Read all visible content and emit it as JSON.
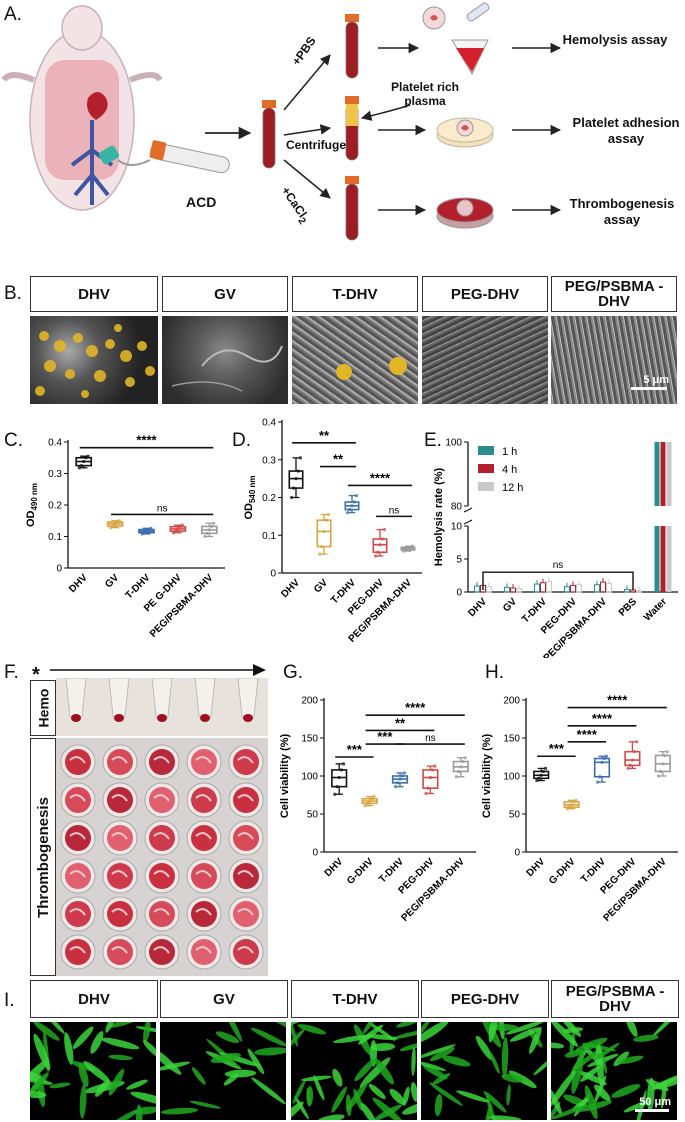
{
  "panels": {
    "A": "A.",
    "B": "B.",
    "C": "C.",
    "D": "D.",
    "E": "E.",
    "F": "F.",
    "G": "G.",
    "H": "H.",
    "I": "I."
  },
  "panel_a": {
    "acd": "ACD",
    "pbs": "+PBS",
    "centrifuge": "Centrifuge",
    "cacl2": "+CaCl",
    "cacl2_sub": "2",
    "prp": "Platelet rich plasma",
    "assay1": "Hemolysis assay",
    "assay2": "Platelet adhesion assay",
    "assay3": "Thrombogenesis assay"
  },
  "panel_b": {
    "headers": [
      "DHV",
      "GV",
      "T-DHV",
      "PEG-DHV",
      "PEG/PSBMA -DHV"
    ],
    "scalebar": "5 μm"
  },
  "panel_f": {
    "hemo": "Hemo",
    "thrombo": "Thrombogenesis",
    "star": "*"
  },
  "panel_i": {
    "headers": [
      "DHV",
      "GV",
      "T-DHV",
      "PEG-DHV",
      "PEG/PSBMA -DHV"
    ],
    "scalebar": "50 μm"
  },
  "chart_data": [
    {
      "id": "C",
      "type": "box",
      "ylabel": "OD",
      "ylabel_sub": "490 nm",
      "categories": [
        "DHV",
        "GV",
        "T-DHV",
        "PE G-DHV",
        "PEG/PSBMA-DHV"
      ],
      "ylim": [
        0,
        0.4
      ],
      "yticks": [
        0.0,
        0.1,
        0.2,
        0.3,
        0.4
      ],
      "colors": [
        "#111111",
        "#d9a441",
        "#3b6fb0",
        "#d04a4a",
        "#9a9a9a"
      ],
      "boxes": [
        {
          "min": 0.318,
          "q1": 0.325,
          "med": 0.338,
          "q3": 0.35,
          "max": 0.355
        },
        {
          "min": 0.128,
          "q1": 0.133,
          "med": 0.14,
          "q3": 0.146,
          "max": 0.15
        },
        {
          "min": 0.108,
          "q1": 0.112,
          "med": 0.117,
          "q3": 0.122,
          "max": 0.126
        },
        {
          "min": 0.112,
          "q1": 0.117,
          "med": 0.124,
          "q3": 0.131,
          "max": 0.136
        },
        {
          "min": 0.1,
          "q1": 0.11,
          "med": 0.121,
          "q3": 0.132,
          "max": 0.142
        }
      ],
      "sig": [
        {
          "from": 0,
          "to": 4,
          "y": 0.382,
          "label": "****"
        },
        {
          "from": 1,
          "to": 4,
          "y": 0.17,
          "label": "ns"
        }
      ]
    },
    {
      "id": "D",
      "type": "box",
      "ylabel": "OD",
      "ylabel_sub": "540 nm",
      "categories": [
        "DHV",
        "GV",
        "T-DHV",
        "PEG-DHV",
        "PEG/PSBMA-DHV"
      ],
      "ylim": [
        0,
        0.4
      ],
      "yticks": [
        0.0,
        0.1,
        0.2,
        0.3,
        0.4
      ],
      "colors": [
        "#111111",
        "#d9a441",
        "#3b6fb0",
        "#d04a4a",
        "#9a9a9a"
      ],
      "boxes": [
        {
          "min": 0.2,
          "q1": 0.225,
          "med": 0.25,
          "q3": 0.27,
          "max": 0.305
        },
        {
          "min": 0.05,
          "q1": 0.07,
          "med": 0.11,
          "q3": 0.14,
          "max": 0.155
        },
        {
          "min": 0.16,
          "q1": 0.168,
          "med": 0.178,
          "q3": 0.188,
          "max": 0.205
        },
        {
          "min": 0.045,
          "q1": 0.055,
          "med": 0.075,
          "q3": 0.09,
          "max": 0.115
        },
        {
          "min": 0.058,
          "q1": 0.061,
          "med": 0.065,
          "q3": 0.068,
          "max": 0.071
        }
      ],
      "sig": [
        {
          "from": 0,
          "to": 2,
          "y": 0.345,
          "label": "**"
        },
        {
          "from": 1,
          "to": 2,
          "y": 0.282,
          "label": "**"
        },
        {
          "from": 2,
          "to": 4,
          "y": 0.232,
          "label": "****"
        },
        {
          "from": 3,
          "to": 4,
          "y": 0.15,
          "label": "ns"
        }
      ]
    },
    {
      "id": "E",
      "type": "bar",
      "ylabel": "Hemolysis rate (%)",
      "categories": [
        "DHV",
        "GV",
        "T-DHV",
        "PEG-DHV",
        "PEG/PSBMA-DHV",
        "PBS",
        "Water"
      ],
      "legend": [
        "1 h",
        "4 h",
        "12 h"
      ],
      "legend_position": "top-left",
      "colors": [
        "#2a8c8c",
        "#b3202c",
        "#c8c8c8"
      ],
      "broken_axis": {
        "lower": [
          0,
          10
        ],
        "upper": [
          80,
          100
        ]
      },
      "yticks": [
        0,
        5,
        10,
        80,
        100
      ],
      "series": [
        {
          "name": "1 h",
          "values": [
            0.9,
            0.7,
            1.2,
            0.8,
            1.1,
            0.4,
            100
          ]
        },
        {
          "name": "4 h",
          "values": [
            1.0,
            0.6,
            1.4,
            1.0,
            1.5,
            0.3,
            100
          ]
        },
        {
          "name": "12 h",
          "values": [
            0.8,
            0.5,
            1.6,
            1.1,
            1.3,
            0.2,
            100
          ]
        }
      ],
      "sig": [
        {
          "from": 0,
          "to": 5,
          "value": 3,
          "label": "ns"
        }
      ]
    },
    {
      "id": "G",
      "type": "box",
      "ylabel": "Cell viability (%)",
      "categories": [
        "DHV",
        "G-DHV",
        "T-DHV",
        "PEG-DHV",
        "PEG/PSBMA-DHV"
      ],
      "ylim": [
        0,
        200
      ],
      "yticks": [
        0,
        50,
        100,
        150,
        200
      ],
      "colors": [
        "#111111",
        "#d9a441",
        "#3b6fb0",
        "#d04a4a",
        "#9a9a9a"
      ],
      "boxes": [
        {
          "min": 76,
          "q1": 86,
          "med": 98,
          "q3": 108,
          "max": 116
        },
        {
          "min": 61,
          "q1": 64,
          "med": 67,
          "q3": 70,
          "max": 73
        },
        {
          "min": 86,
          "q1": 91,
          "med": 96,
          "q3": 100,
          "max": 104
        },
        {
          "min": 77,
          "q1": 84,
          "med": 98,
          "q3": 108,
          "max": 113
        },
        {
          "min": 99,
          "q1": 106,
          "med": 112,
          "q3": 119,
          "max": 124
        }
      ],
      "sig": [
        {
          "from": 0,
          "to": 1,
          "y": 125,
          "label": "***"
        },
        {
          "from": 1,
          "to": 2,
          "y": 142,
          "label": "***"
        },
        {
          "from": 1,
          "to": 3,
          "y": 160,
          "label": "**"
        },
        {
          "from": 1,
          "to": 4,
          "y": 180,
          "label": "****"
        },
        {
          "from": 2,
          "to": 4,
          "y": 142,
          "label": "ns"
        }
      ]
    },
    {
      "id": "H",
      "type": "box",
      "ylabel": "Cell viability (%)",
      "categories": [
        "DHV",
        "G-DHV",
        "T-DHV",
        "PEG-DHV",
        "PEG/PSBMA-DHV"
      ],
      "ylim": [
        0,
        200
      ],
      "yticks": [
        0,
        50,
        100,
        150,
        200
      ],
      "colors": [
        "#111111",
        "#d9a441",
        "#3b6fb0",
        "#d04a4a",
        "#9a9a9a"
      ],
      "boxes": [
        {
          "min": 94,
          "q1": 97,
          "med": 101,
          "q3": 106,
          "max": 110
        },
        {
          "min": 57,
          "q1": 59,
          "med": 62,
          "q3": 66,
          "max": 68
        },
        {
          "min": 92,
          "q1": 99,
          "med": 118,
          "q3": 123,
          "max": 126
        },
        {
          "min": 110,
          "q1": 114,
          "med": 121,
          "q3": 132,
          "max": 145
        },
        {
          "min": 100,
          "q1": 106,
          "med": 116,
          "q3": 127,
          "max": 132
        }
      ],
      "sig": [
        {
          "from": 0,
          "to": 1,
          "y": 126,
          "label": "***"
        },
        {
          "from": 1,
          "to": 2,
          "y": 145,
          "label": "****"
        },
        {
          "from": 1,
          "to": 3,
          "y": 166,
          "label": "****"
        },
        {
          "from": 1,
          "to": 4,
          "y": 190,
          "label": "****"
        }
      ]
    }
  ]
}
